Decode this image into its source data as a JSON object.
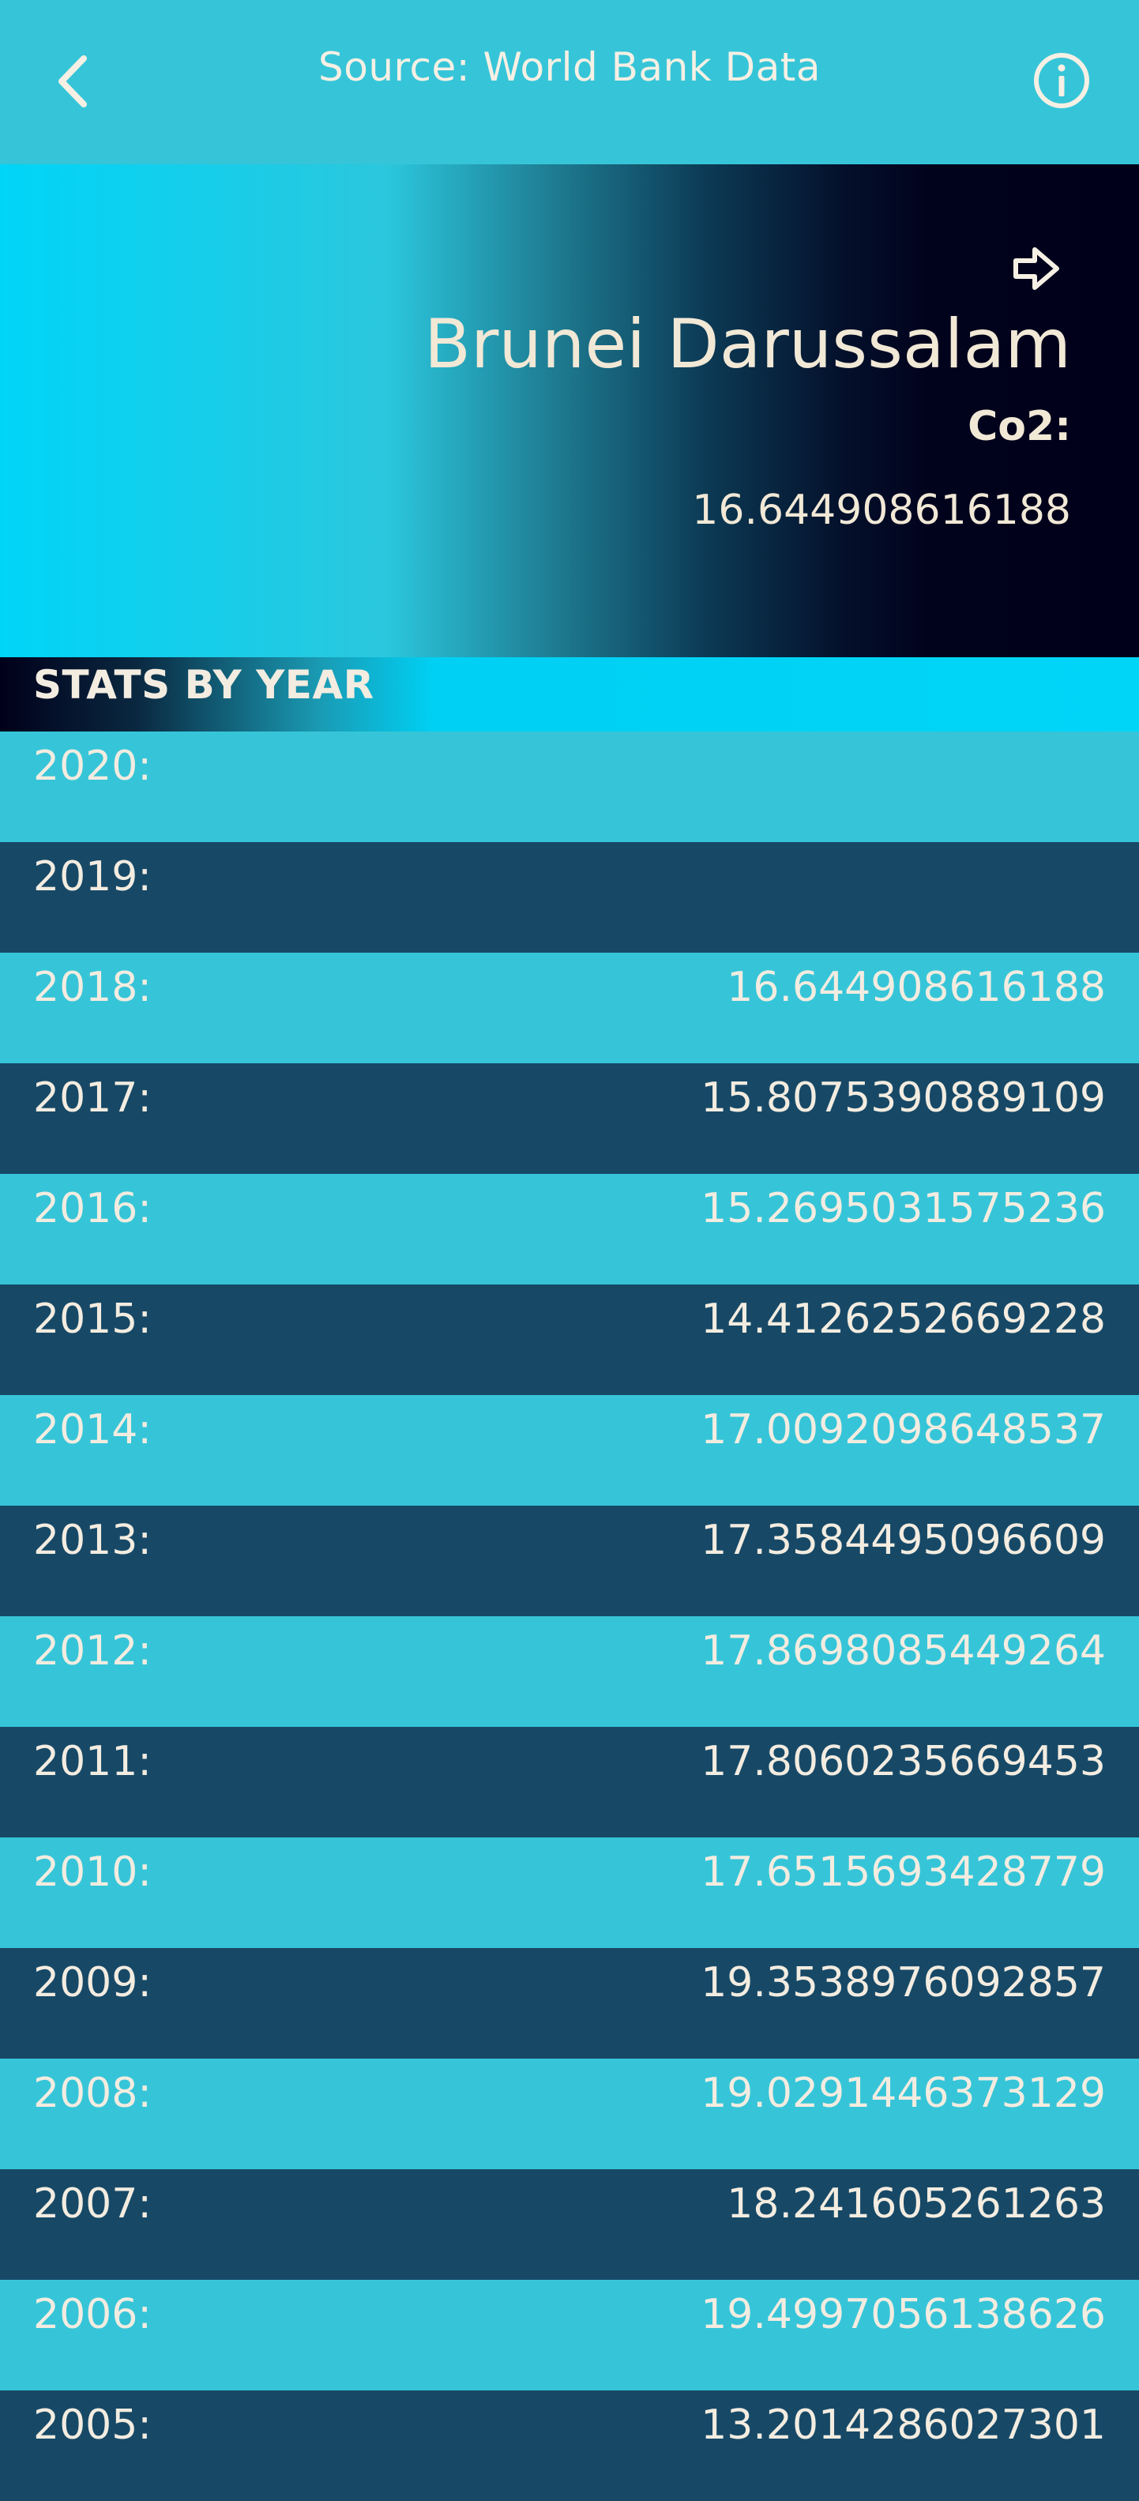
{
  "header": {
    "title": "Source: World Bank Data"
  },
  "hero": {
    "country": "Brunei Darussalam",
    "metric_label": "Co2:",
    "metric_value": "16.644908616188"
  },
  "stats": {
    "heading": "STATS BY YEAR",
    "rows": [
      {
        "year": "2020:",
        "value": ""
      },
      {
        "year": "2019:",
        "value": ""
      },
      {
        "year": "2018:",
        "value": "16.644908616188"
      },
      {
        "year": "2017:",
        "value": "15.8075390889109"
      },
      {
        "year": "2016:",
        "value": "15.2695031575236"
      },
      {
        "year": "2015:",
        "value": "14.4126252669228"
      },
      {
        "year": "2014:",
        "value": "17.0092098648537"
      },
      {
        "year": "2013:",
        "value": "17.3584495096609"
      },
      {
        "year": "2012:",
        "value": "17.8698085449264"
      },
      {
        "year": "2011:",
        "value": "17.8060235669453"
      },
      {
        "year": "2010:",
        "value": "17.6515693428779"
      },
      {
        "year": "2009:",
        "value": "19.3538976092857"
      },
      {
        "year": "2008:",
        "value": "19.0291446373129"
      },
      {
        "year": "2007:",
        "value": "18.241605261263"
      },
      {
        "year": "2006:",
        "value": "19.4997056138626"
      },
      {
        "year": "2005:",
        "value": "13.2014286027301"
      }
    ]
  },
  "colors": {
    "light_row": "#36c5d8",
    "dark_row": "#174967",
    "hero_dark": "#01001a",
    "accent_cyan": "#00d5f8"
  },
  "icons": {
    "back": "chevron-left-icon",
    "info": "info-icon",
    "share": "share-arrow-icon"
  }
}
